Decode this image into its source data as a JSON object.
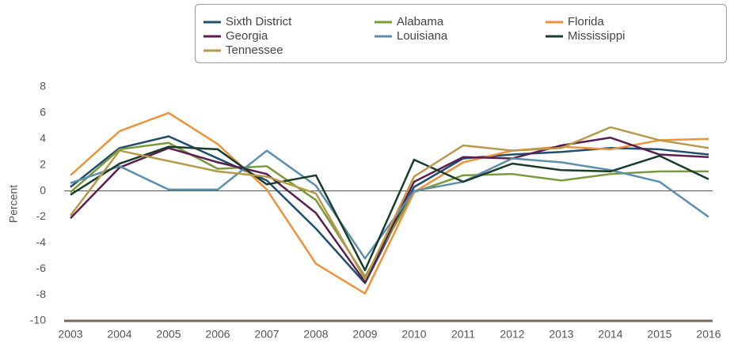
{
  "chart_data": {
    "type": "line",
    "y_label": "Percent",
    "categories": [
      "2003",
      "2004",
      "2005",
      "2006",
      "2007",
      "2008",
      "2009",
      "2010",
      "2011",
      "2012",
      "2013",
      "2014",
      "2015",
      "2016"
    ],
    "ylim": [
      -10,
      8
    ],
    "yticks": [
      -10,
      -8,
      -6,
      -4,
      -2,
      0,
      2,
      4,
      6,
      8
    ],
    "legend": "top-right",
    "series": [
      {
        "name": "Sixth District",
        "color": "#1f4e6e",
        "values": [
          0.3,
          3.3,
          4.2,
          2.5,
          0.8,
          -2.9,
          -7.1,
          0.3,
          2.5,
          2.8,
          3.0,
          3.3,
          3.2,
          2.8
        ]
      },
      {
        "name": "Alabama",
        "color": "#7a9a3a",
        "values": [
          -0.1,
          3.2,
          3.7,
          1.7,
          1.9,
          -0.7,
          -6.6,
          -0.1,
          1.2,
          1.3,
          0.8,
          1.3,
          1.5,
          1.5
        ]
      },
      {
        "name": "Florida",
        "color": "#f0923a",
        "values": [
          1.2,
          4.6,
          6.0,
          3.6,
          0.1,
          -5.6,
          -7.9,
          -0.1,
          2.2,
          3.1,
          3.4,
          3.2,
          3.9,
          4.0
        ]
      },
      {
        "name": "Georgia",
        "color": "#5a1f4e",
        "values": [
          -2.1,
          1.8,
          3.3,
          2.2,
          1.3,
          -1.7,
          -7.0,
          0.7,
          2.6,
          2.5,
          3.5,
          4.1,
          2.8,
          2.6
        ]
      },
      {
        "name": "Louisiana",
        "color": "#5b8fad",
        "values": [
          0.6,
          1.9,
          0.1,
          0.1,
          3.1,
          0.4,
          -5.2,
          0.0,
          0.7,
          2.5,
          2.2,
          1.6,
          0.7,
          -2.0
        ]
      },
      {
        "name": "Mississippi",
        "color": "#1a3d2b",
        "values": [
          -0.3,
          2.1,
          3.4,
          3.2,
          0.5,
          1.2,
          -6.1,
          2.4,
          0.7,
          2.1,
          1.6,
          1.5,
          2.7,
          0.9
        ]
      },
      {
        "name": "Tennessee",
        "color": "#b8994a",
        "values": [
          -1.9,
          3.1,
          2.3,
          1.5,
          1.1,
          -0.2,
          -6.8,
          1.1,
          3.5,
          3.1,
          3.3,
          4.9,
          3.9,
          3.3
        ]
      }
    ]
  }
}
